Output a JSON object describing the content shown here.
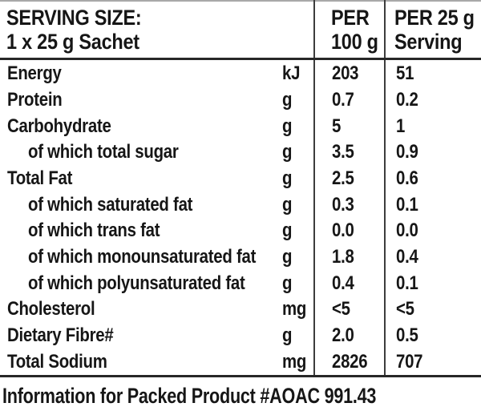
{
  "header": {
    "serving_size_line1": "SERVING SIZE:",
    "serving_size_line2": "1 x 25 g Sachet",
    "col_per100_line1": "PER",
    "col_per100_line2": "100 g",
    "col_per25_line1": "PER 25 g",
    "col_per25_line2": "Serving"
  },
  "rows": [
    {
      "label": "Energy",
      "unit": "kJ",
      "per100": "203",
      "per25": "51",
      "indent": false
    },
    {
      "label": "Protein",
      "unit": "g",
      "per100": "0.7",
      "per25": "0.2",
      "indent": false
    },
    {
      "label": "Carbohydrate",
      "unit": "g",
      "per100": "5",
      "per25": "1",
      "indent": false
    },
    {
      "label": "of which total sugar",
      "unit": "g",
      "per100": "3.5",
      "per25": "0.9",
      "indent": true
    },
    {
      "label": "Total Fat",
      "unit": "g",
      "per100": "2.5",
      "per25": "0.6",
      "indent": false
    },
    {
      "label": "of which saturated fat",
      "unit": "g",
      "per100": "0.3",
      "per25": "0.1",
      "indent": true
    },
    {
      "label": "of which trans fat",
      "unit": "g",
      "per100": "0.0",
      "per25": "0.0",
      "indent": true
    },
    {
      "label": "of which monounsaturated fat",
      "unit": "g",
      "per100": "1.8",
      "per25": "0.4",
      "indent": true
    },
    {
      "label": "of which polyunsaturated fat",
      "unit": "g",
      "per100": "0.4",
      "per25": "0.1",
      "indent": true
    },
    {
      "label": "Cholesterol",
      "unit": "mg",
      "per100": "<5",
      "per25": "<5",
      "indent": false
    },
    {
      "label": "Dietary Fibre#",
      "unit": "g",
      "per100": "2.0",
      "per25": "0.5",
      "indent": false
    },
    {
      "label": "Total Sodium",
      "unit": "mg",
      "per100": "2826",
      "per25": "707",
      "indent": false
    }
  ],
  "footer": {
    "note": "Information for Packed Product #AOAC 991.43"
  },
  "colors": {
    "text": "#161616",
    "rule_dark": "#272727",
    "rule_mid": "#3c3c3c",
    "rule_light": "#a8a8a8",
    "background": "#ffffff"
  }
}
